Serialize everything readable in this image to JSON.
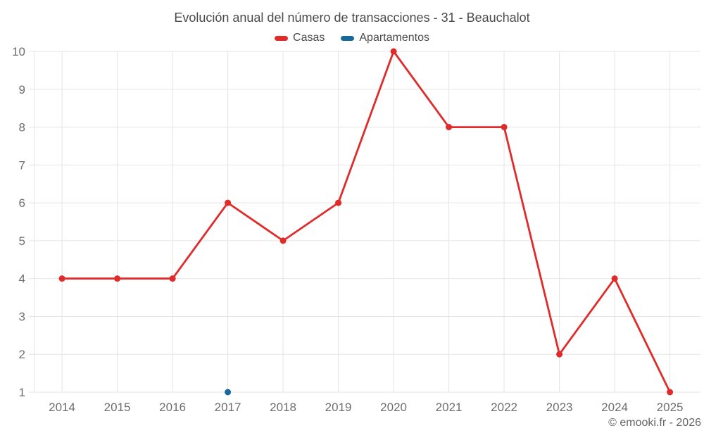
{
  "chart_data": {
    "type": "line",
    "title": "Evolución anual del número de transacciones - 31 - Beauchalot",
    "categories": [
      "2014",
      "2015",
      "2016",
      "2017",
      "2018",
      "2019",
      "2020",
      "2021",
      "2022",
      "2023",
      "2024",
      "2025"
    ],
    "series": [
      {
        "name": "Casas",
        "color": "#e02b2b",
        "values": [
          4,
          4,
          4,
          6,
          5,
          6,
          10,
          8,
          8,
          2,
          4,
          1
        ]
      },
      {
        "name": "Apartamentos",
        "color": "#17699c",
        "values": [
          null,
          null,
          null,
          1,
          null,
          null,
          null,
          null,
          null,
          null,
          null,
          null
        ]
      }
    ],
    "xlabel": "",
    "ylabel": "",
    "ylim": [
      1,
      10
    ],
    "yticks": [
      1,
      2,
      3,
      4,
      5,
      6,
      7,
      8,
      9,
      10
    ],
    "grid": true,
    "legend_position": "top",
    "colors": {
      "grid": "#e4e4e4",
      "axis_label": "#6e6e6e",
      "title_text": "#4a4a4a",
      "legend_text": "#4a4a4a",
      "credit_text": "#666666"
    }
  },
  "footer": {
    "credit": "© emooki.fr - 2026"
  }
}
